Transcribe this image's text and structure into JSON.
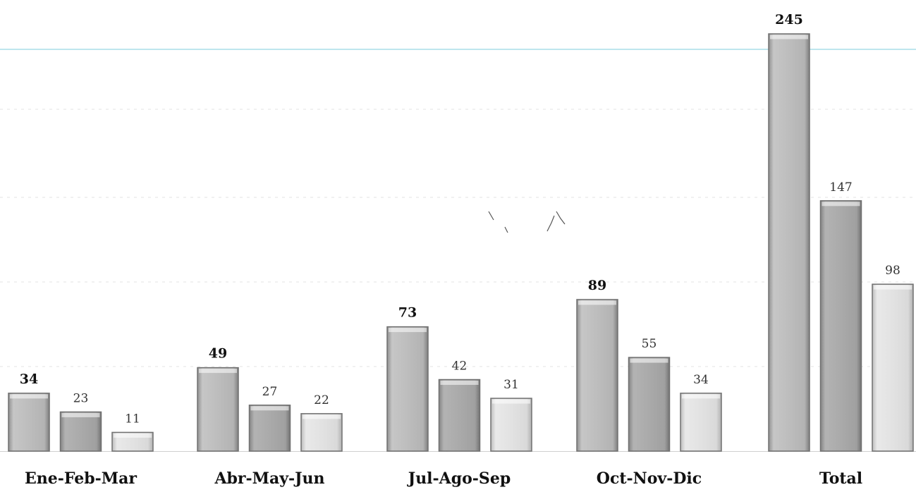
{
  "chart_data": {
    "type": "bar",
    "categories": [
      "Ene-Feb-Mar",
      "Abr-May-Jun",
      "Jul-Ago-Sep",
      "Oct-Nov-Dic",
      "Total"
    ],
    "series": [
      {
        "values": [
          34,
          49,
          73,
          89,
          245
        ],
        "color": "#b9b9b9"
      },
      {
        "values": [
          23,
          27,
          42,
          55,
          147
        ],
        "color": "#a9a9a9"
      },
      {
        "values": [
          11,
          22,
          31,
          34,
          98
        ],
        "color": "#dedede"
      }
    ],
    "title": "",
    "xlabel": "",
    "ylabel": "",
    "ylim": [
      0,
      245
    ],
    "grid": true,
    "legend": "none",
    "data_labels": true
  }
}
